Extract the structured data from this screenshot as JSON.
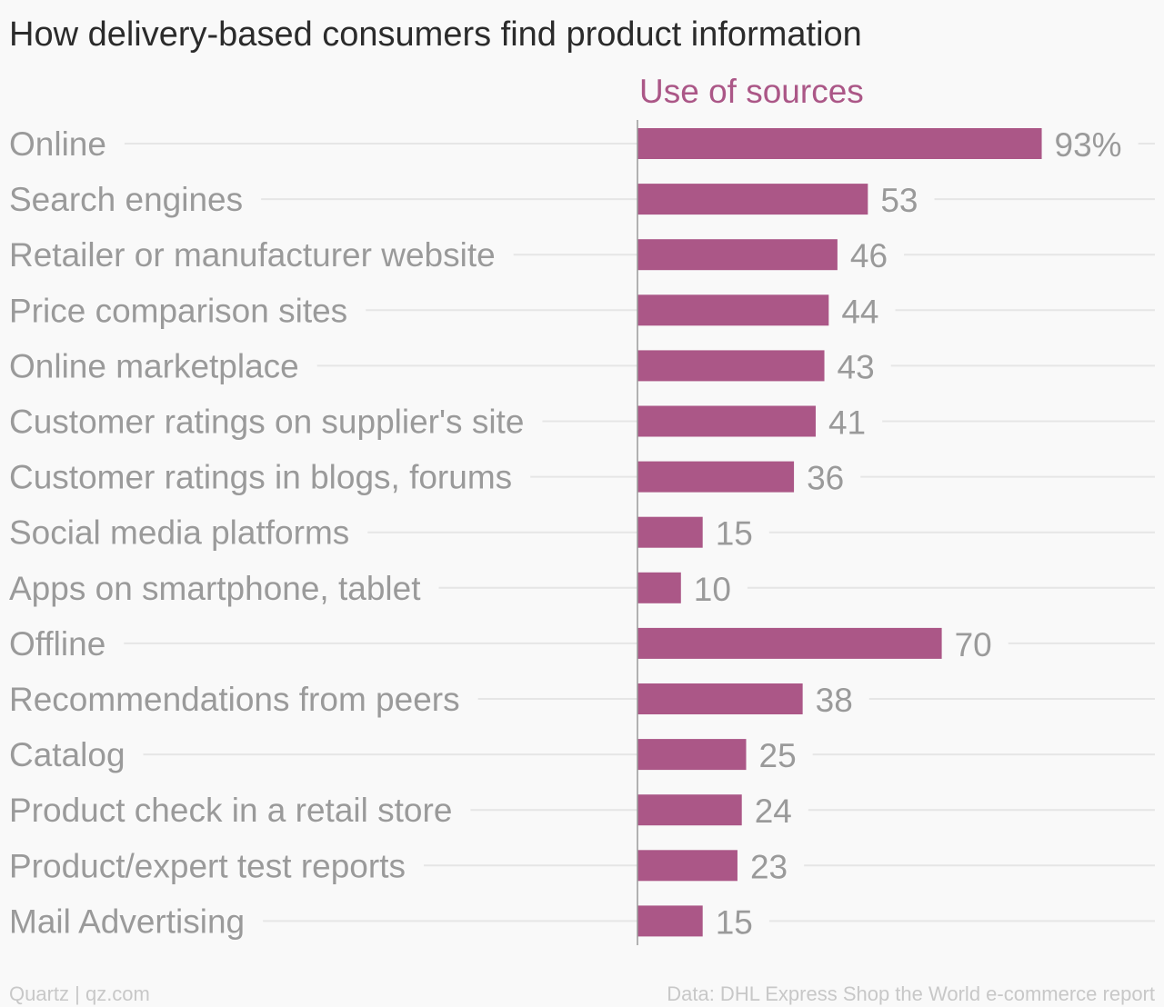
{
  "title": "How delivery-based consumers find product information",
  "footer": {
    "source_left": "Quartz | qz.com",
    "source_right": "Data: DHL Express Shop the World e-commerce report"
  },
  "colors": {
    "bar": "#ab5787",
    "series_label": "#ab5787",
    "category_text": "#9a9a9a",
    "gridline": "#e6e6e6",
    "background": "#f9f9f9"
  },
  "chart_data": {
    "type": "bar",
    "orientation": "horizontal",
    "title": "How delivery-based consumers find product information",
    "series_name": "Use of sources",
    "categories": [
      "Online",
      "Search engines",
      "Retailer or manufacturer website",
      "Price comparison sites",
      "Online marketplace",
      "Customer ratings on supplier's site",
      "Customer ratings in blogs, forums",
      "Social media platforms",
      "Apps on smartphone, tablet",
      "Offline",
      "Recommendations from peers",
      "Catalog",
      "Product check in a retail store",
      "Product/expert test reports",
      "Mail Advertising"
    ],
    "values": [
      93,
      53,
      46,
      44,
      43,
      41,
      36,
      15,
      10,
      70,
      38,
      25,
      24,
      23,
      15
    ],
    "value_labels": [
      "93%",
      "53",
      "46",
      "44",
      "43",
      "41",
      "36",
      "15",
      "10",
      "70",
      "38",
      "25",
      "24",
      "23",
      "15"
    ],
    "unit": "%",
    "xlim": [
      0,
      100
    ],
    "grid": true
  }
}
